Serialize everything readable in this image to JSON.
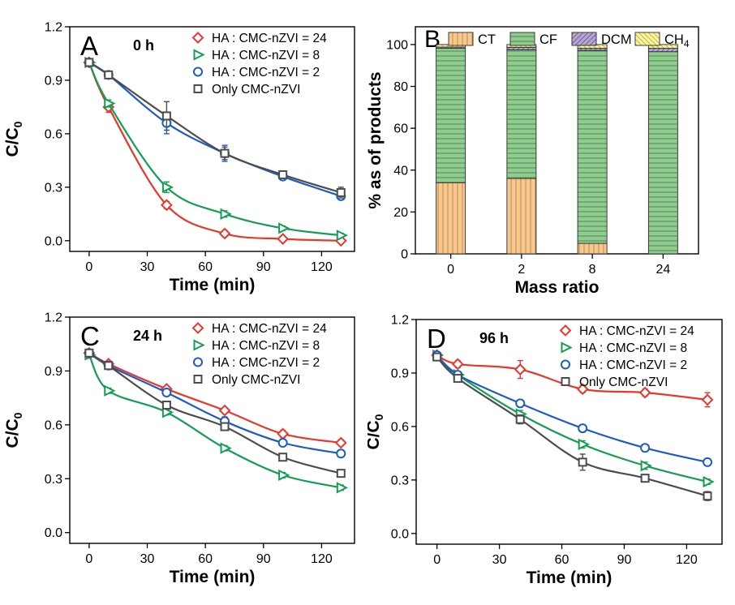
{
  "figure": {
    "background": "#ffffff",
    "description_visible_panels": [
      "A",
      "B",
      "C",
      "D"
    ]
  },
  "chart_data": [
    {
      "id": "A",
      "type": "line",
      "panel_label": "A",
      "annotation": "0 h",
      "xlabel": "Time (min)",
      "ylabel": "C/C",
      "ylabel_sub": "0",
      "xlim": [
        -10,
        137
      ],
      "ylim": [
        -0.06,
        1.2
      ],
      "xticks": [
        0,
        30,
        60,
        90,
        120
      ],
      "yticks": [
        0,
        0.3,
        0.6,
        0.9,
        1.2
      ],
      "grid": false,
      "legend_position": "top-right",
      "x": [
        0,
        10,
        40,
        70,
        100,
        130
      ],
      "series": [
        {
          "name": "HA : CMC-nZVI = 24",
          "color": "#e8382d",
          "marker": "diamond",
          "values": [
            1.0,
            0.75,
            0.2,
            0.04,
            0.01,
            0.0
          ],
          "err": [
            0.012,
            0.03,
            0.02,
            0.018,
            0.012,
            0.01
          ]
        },
        {
          "name": "HA : CMC-nZVI = 8",
          "color": "#149e52",
          "marker": "triangle-right",
          "values": [
            1.0,
            0.77,
            0.3,
            0.15,
            0.07,
            0.03
          ],
          "err": [
            0.012,
            0.02,
            0.03,
            0.018,
            0.012,
            0.012
          ]
        },
        {
          "name": "HA : CMC-nZVI = 2",
          "color": "#1d5bc4",
          "marker": "circle",
          "values": [
            1.0,
            0.93,
            0.66,
            0.49,
            0.36,
            0.25
          ],
          "err": [
            0.012,
            0.02,
            0.06,
            0.045,
            0.02,
            0.02
          ]
        },
        {
          "name": "Only  CMC-nZVI",
          "color": "#4d4d4d",
          "marker": "square",
          "values": [
            1.0,
            0.93,
            0.7,
            0.49,
            0.37,
            0.27
          ],
          "err": [
            0.012,
            0.02,
            0.08,
            0.035,
            0.02,
            0.03
          ]
        }
      ]
    },
    {
      "id": "B",
      "type": "bar",
      "stacked": true,
      "panel_label": "B",
      "xlabel": "Mass ratio",
      "ylabel": "% as of products",
      "categories": [
        "0",
        "2",
        "8",
        "24"
      ],
      "ylim": [
        0,
        108.5
      ],
      "yticks": [
        0,
        20,
        40,
        60,
        80,
        100
      ],
      "grid": false,
      "legend_position": "top-inside",
      "series": [
        {
          "name": "CT",
          "fill": "#f8c88e",
          "hatch": "vertical",
          "hatch_color": "#bd8b52",
          "values": [
            34,
            36,
            5,
            0
          ]
        },
        {
          "name": "CF",
          "fill": "#92cb90",
          "hatch": "horizontal",
          "hatch_color": "#4f8d55",
          "values": [
            64.2,
            61.5,
            92.2,
            96.6
          ]
        },
        {
          "name": "DCM",
          "fill": "#b8a7d3",
          "hatch": "diag-up",
          "hatch_color": "#70609c",
          "values": [
            0.6,
            1.2,
            1.0,
            1.6
          ]
        },
        {
          "name": "CH",
          "sub": "4",
          "fill": "#fbf7a0",
          "hatch": "diag-down",
          "hatch_color": "#bfb34e",
          "values": [
            1.2,
            1.3,
            1.8,
            1.8
          ]
        }
      ]
    },
    {
      "id": "C",
      "type": "line",
      "panel_label": "C",
      "annotation": "24 h",
      "xlabel": "Time (min)",
      "ylabel": "C/C",
      "ylabel_sub": "0",
      "xlim": [
        -10,
        137
      ],
      "ylim": [
        -0.06,
        1.2
      ],
      "xticks": [
        0,
        30,
        60,
        90,
        120
      ],
      "yticks": [
        0,
        0.3,
        0.6,
        0.9,
        1.2
      ],
      "grid": false,
      "legend_position": "top-right",
      "x": [
        0,
        10,
        40,
        70,
        100,
        130
      ],
      "series": [
        {
          "name": "HA : CMC-nZVI = 24",
          "color": "#e8382d",
          "marker": "diamond",
          "values": [
            1.0,
            0.94,
            0.8,
            0.68,
            0.55,
            0.5
          ],
          "err": [
            0.015,
            0.015,
            0.015,
            0.015,
            0.02,
            0.015
          ]
        },
        {
          "name": "HA : CMC-nZVI = 8",
          "color": "#149e52",
          "marker": "triangle-right",
          "values": [
            0.99,
            0.79,
            0.67,
            0.47,
            0.32,
            0.25
          ],
          "err": [
            0.015,
            0.015,
            0.015,
            0.015,
            0.015,
            0.015
          ]
        },
        {
          "name": "HA : CMC-nZVI = 2",
          "color": "#1d5bc4",
          "marker": "circle",
          "values": [
            1.0,
            0.93,
            0.78,
            0.62,
            0.5,
            0.44
          ],
          "err": [
            0.015,
            0.015,
            0.02,
            0.025,
            0.02,
            0.02
          ]
        },
        {
          "name": "Only  CMC-nZVI",
          "color": "#4d4d4d",
          "marker": "square",
          "values": [
            1.0,
            0.93,
            0.71,
            0.59,
            0.42,
            0.33
          ],
          "err": [
            0.015,
            0.02,
            0.02,
            0.02,
            0.02,
            0.02
          ]
        }
      ]
    },
    {
      "id": "D",
      "type": "line",
      "panel_label": "D",
      "annotation": "96 h",
      "xlabel": "Time (min)",
      "ylabel": "C/C",
      "ylabel_sub": "0",
      "xlim": [
        -10,
        137
      ],
      "ylim": [
        -0.06,
        1.2
      ],
      "xticks": [
        0,
        30,
        60,
        90,
        120
      ],
      "yticks": [
        0,
        0.3,
        0.6,
        0.9,
        1.2
      ],
      "grid": false,
      "legend_position": "top-right",
      "x": [
        0,
        10,
        40,
        70,
        100,
        130
      ],
      "series": [
        {
          "name": "HA : CMC-nZVI = 24",
          "color": "#e8382d",
          "marker": "diamond",
          "values": [
            1.0,
            0.95,
            0.92,
            0.81,
            0.79,
            0.75
          ],
          "err": [
            0.015,
            0.02,
            0.05,
            0.02,
            0.02,
            0.04
          ]
        },
        {
          "name": "HA : CMC-nZVI = 8",
          "color": "#149e52",
          "marker": "triangle-right",
          "values": [
            1.0,
            0.89,
            0.67,
            0.5,
            0.38,
            0.29
          ],
          "err": [
            0.012,
            0.015,
            0.02,
            0.02,
            0.02,
            0.015
          ]
        },
        {
          "name": "HA : CMC-nZVI = 2",
          "color": "#1d5bc4",
          "marker": "circle",
          "values": [
            1.0,
            0.89,
            0.73,
            0.59,
            0.48,
            0.4
          ],
          "err": [
            0.012,
            0.015,
            0.02,
            0.02,
            0.02,
            0.02
          ]
        },
        {
          "name": "Only  CMC-nZVI",
          "color": "#4d4d4d",
          "marker": "square",
          "values": [
            0.99,
            0.87,
            0.64,
            0.4,
            0.31,
            0.21
          ],
          "err": [
            0.015,
            0.02,
            0.025,
            0.045,
            0.02,
            0.025
          ]
        }
      ]
    }
  ]
}
